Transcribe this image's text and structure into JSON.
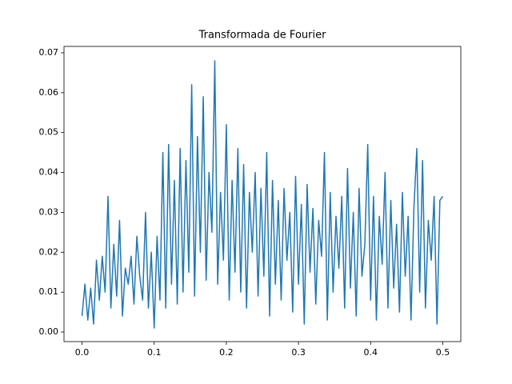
{
  "chart_data": {
    "type": "line",
    "title": "Transformada de Fourier",
    "x": [
      0,
      0.004,
      0.008,
      0.012,
      0.016,
      0.02,
      0.024,
      0.028,
      0.032,
      0.036,
      0.04,
      0.044,
      0.048,
      0.052,
      0.056,
      0.06,
      0.064,
      0.068,
      0.072,
      0.076,
      0.08,
      0.084,
      0.088,
      0.092,
      0.096,
      0.1,
      0.104,
      0.108,
      0.112,
      0.116,
      0.12,
      0.124,
      0.128,
      0.132,
      0.136,
      0.14,
      0.144,
      0.148,
      0.152,
      0.156,
      0.16,
      0.164,
      0.168,
      0.172,
      0.176,
      0.18,
      0.184,
      0.188,
      0.192,
      0.196,
      0.2,
      0.204,
      0.208,
      0.212,
      0.216,
      0.22,
      0.224,
      0.228,
      0.232,
      0.236,
      0.24,
      0.244,
      0.248,
      0.252,
      0.256,
      0.26,
      0.264,
      0.268,
      0.272,
      0.276,
      0.28,
      0.284,
      0.288,
      0.292,
      0.296,
      0.3,
      0.304,
      0.308,
      0.312,
      0.316,
      0.32,
      0.324,
      0.328,
      0.332,
      0.336,
      0.34,
      0.344,
      0.348,
      0.352,
      0.356,
      0.36,
      0.364,
      0.368,
      0.372,
      0.376,
      0.38,
      0.384,
      0.388,
      0.392,
      0.396,
      0.4,
      0.404,
      0.408,
      0.412,
      0.416,
      0.42,
      0.424,
      0.428,
      0.432,
      0.436,
      0.44,
      0.444,
      0.448,
      0.452,
      0.456,
      0.46,
      0.464,
      0.468,
      0.472,
      0.476,
      0.48,
      0.484,
      0.488,
      0.492,
      0.496,
      0.5
    ],
    "series": [
      {
        "color": "#1f77b4",
        "values": [
          0.004,
          0.012,
          0.003,
          0.011,
          0.002,
          0.018,
          0.008,
          0.019,
          0.01,
          0.034,
          0.006,
          0.022,
          0.009,
          0.028,
          0.004,
          0.016,
          0.012,
          0.019,
          0.007,
          0.024,
          0.014,
          0.008,
          0.03,
          0.006,
          0.02,
          0.001,
          0.024,
          0.008,
          0.045,
          0.006,
          0.047,
          0.012,
          0.038,
          0.007,
          0.046,
          0.01,
          0.043,
          0.015,
          0.062,
          0.009,
          0.049,
          0.02,
          0.059,
          0.013,
          0.04,
          0.025,
          0.068,
          0.012,
          0.035,
          0.018,
          0.052,
          0.008,
          0.038,
          0.015,
          0.046,
          0.01,
          0.042,
          0.006,
          0.035,
          0.02,
          0.04,
          0.009,
          0.036,
          0.014,
          0.045,
          0.004,
          0.038,
          0.012,
          0.033,
          0.008,
          0.036,
          0.018,
          0.03,
          0.005,
          0.039,
          0.012,
          0.032,
          0.002,
          0.037,
          0.015,
          0.031,
          0.007,
          0.028,
          0.019,
          0.045,
          0.003,
          0.035,
          0.01,
          0.029,
          0.016,
          0.034,
          0.006,
          0.041,
          0.011,
          0.03,
          0.004,
          0.036,
          0.014,
          0.022,
          0.047,
          0.008,
          0.034,
          0.003,
          0.029,
          0.017,
          0.04,
          0.006,
          0.033,
          0.011,
          0.027,
          0.005,
          0.035,
          0.014,
          0.029,
          0.003,
          0.031,
          0.046,
          0.01,
          0.043,
          0.006,
          0.028,
          0.018,
          0.034,
          0.002,
          0.033,
          0.034
        ]
      }
    ],
    "xlim": [
      -0.025,
      0.525
    ],
    "xticks": [
      {
        "value": 0,
        "label": "0.0"
      },
      0.1,
      0.2,
      0.3,
      0.4,
      0.5
    ],
    "ylim": [
      -0.0024,
      0.0716
    ],
    "yticks": [
      {
        "value": 0,
        "label": "0.00"
      },
      {
        "value": 0.01,
        "label": "0.01"
      },
      {
        "value": 0.02,
        "label": "0.02"
      },
      {
        "value": 0.03,
        "label": "0.03"
      },
      {
        "value": 0.04,
        "label": "0.04"
      },
      {
        "value": 0.05,
        "label": "0.05"
      },
      {
        "value": 0.06,
        "label": "0.06"
      },
      {
        "value": 0.07,
        "label": "0.07"
      }
    ],
    "grid": false
  }
}
